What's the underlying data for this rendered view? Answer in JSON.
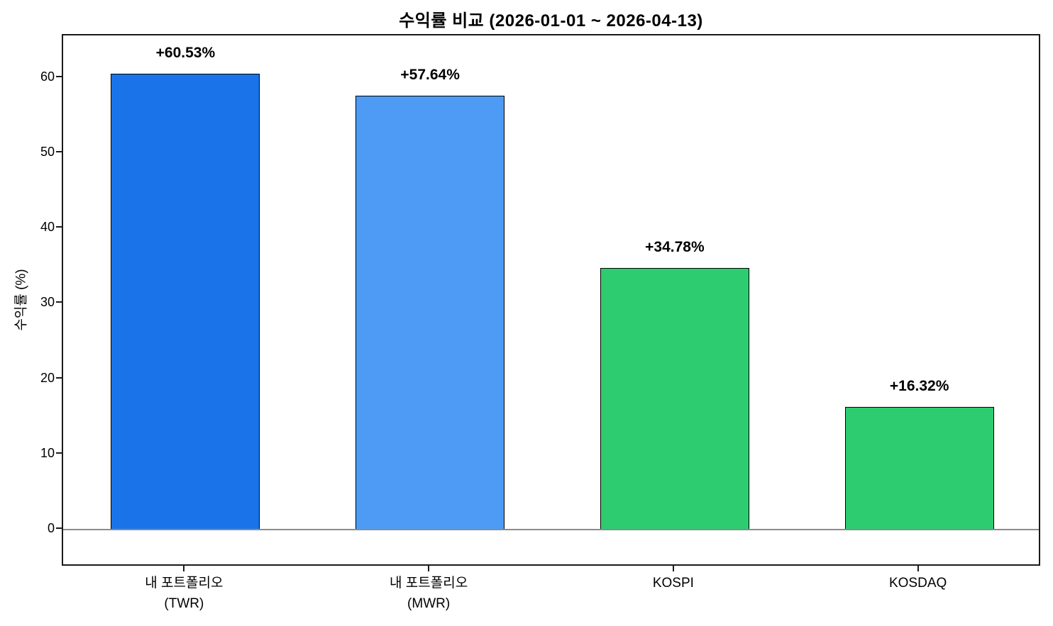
{
  "chart_data": {
    "type": "bar",
    "title": "수익률 비교 (2026-01-01 ~ 2026-04-13)",
    "xlabel": "",
    "ylabel": "수익률 (%)",
    "categories": [
      "내 포트폴리오 (TWR)",
      "내 포트폴리오 (MWR)",
      "KOSPI",
      "KOSDAQ"
    ],
    "category_label_lines": [
      [
        "내 포트폴리오",
        "(TWR)"
      ],
      [
        "내 포트폴리오",
        "(MWR)"
      ],
      [
        "KOSPI"
      ],
      [
        "KOSDAQ"
      ]
    ],
    "values": [
      60.53,
      57.64,
      34.78,
      16.32
    ],
    "bar_value_labels": [
      "+60.53%",
      "+57.64%",
      "+34.78%",
      "+16.32%"
    ],
    "bar_colors": [
      "#1a73e8",
      "#4d9bf5",
      "#2ecc71",
      "#2ecc71"
    ],
    "bar_edge_color": "#000000",
    "yticks": [
      "0",
      "10",
      "20",
      "30",
      "40",
      "50",
      "60"
    ],
    "ytick_values": [
      0,
      10,
      20,
      30,
      40,
      50,
      60
    ],
    "ylim": [
      -5.0,
      65.65
    ],
    "grid": false,
    "legend": null,
    "zero_baseline_color": "#8c8c8c",
    "axis_color": "#1a1a1a",
    "text_color": "#000000",
    "background_color": "#ffffff"
  }
}
